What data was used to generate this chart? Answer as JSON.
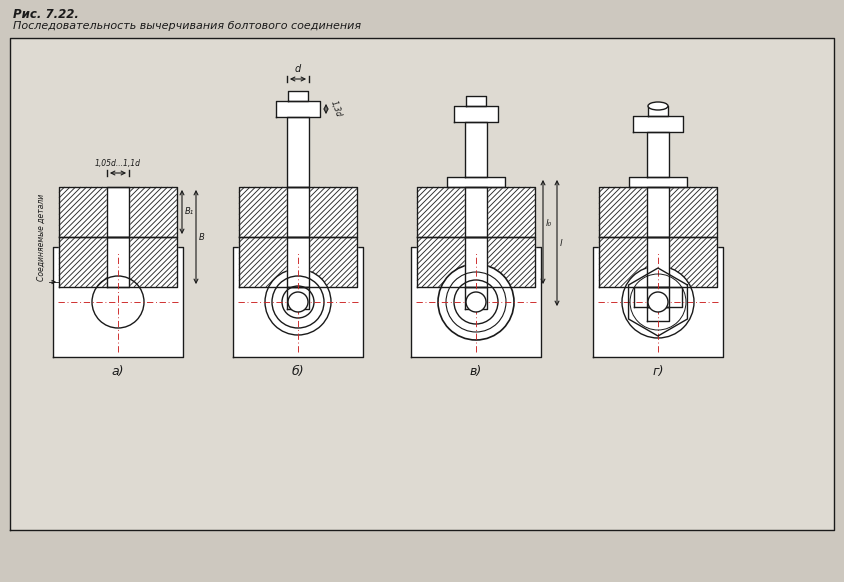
{
  "title1": "Рис. 7.22.",
  "title2": "Последовательность вычерчивания болтового соединения",
  "bg_color": "#cdc8bf",
  "panel_color": "#dedad2",
  "line_color": "#1a1a1a",
  "hatch_color": "#2a2a2a",
  "labels": [
    "а)",
    "б)",
    "в)",
    "г)"
  ],
  "side_label": "Соединяемые детали",
  "dim_hole": "1,05d...1,1d",
  "dim_d": "d",
  "dim_13d": "1,3d",
  "dim_B1": "B₁",
  "dim_B": "B",
  "dim_l0": "l₀",
  "dim_l": "l"
}
